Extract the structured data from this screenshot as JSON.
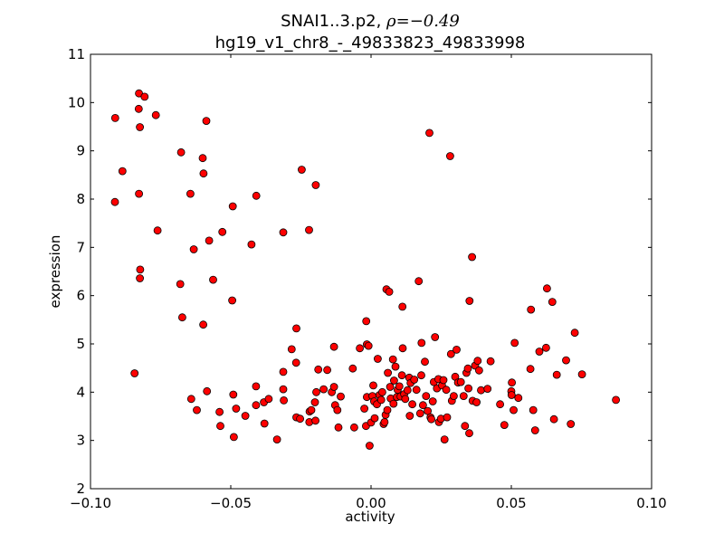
{
  "chart_data": {
    "type": "scatter",
    "title": {
      "line1_prefix": "SNAI1..3.p2,",
      "rho_symbol": "ρ",
      "rho_value": "=−0.49",
      "line2": "hg19_v1_chr8_-_49833823_49833998"
    },
    "xlabel": "activity",
    "ylabel": "expression",
    "xlim": [
      -0.1,
      0.1
    ],
    "ylim": [
      2,
      11
    ],
    "xticks": [
      -0.1,
      -0.05,
      0.0,
      0.05,
      0.1
    ],
    "xtick_labels": [
      "−0.10",
      "−0.05",
      "0.00",
      "0.05",
      "0.10"
    ],
    "yticks": [
      2,
      3,
      4,
      5,
      6,
      7,
      8,
      9,
      10,
      11
    ],
    "ytick_labels": [
      "2",
      "3",
      "4",
      "5",
      "6",
      "7",
      "8",
      "9",
      "10",
      "11"
    ],
    "grid": false,
    "legend": "none",
    "marker": {
      "shape": "circle",
      "fill": "#ff0000",
      "edge": "#000000"
    },
    "points": [
      [
        -0.0912,
        9.68
      ],
      [
        -0.0827,
        10.19
      ],
      [
        -0.0807,
        10.12
      ],
      [
        -0.0828,
        9.87
      ],
      [
        -0.0824,
        9.49
      ],
      [
        -0.0767,
        9.74
      ],
      [
        -0.0886,
        8.58
      ],
      [
        -0.0913,
        7.94
      ],
      [
        -0.0827,
        8.11
      ],
      [
        -0.0761,
        7.35
      ],
      [
        -0.0823,
        6.54
      ],
      [
        -0.0824,
        6.36
      ],
      [
        -0.0843,
        4.39
      ],
      [
        -0.0587,
        9.62
      ],
      [
        -0.0677,
        8.97
      ],
      [
        -0.06,
        8.85
      ],
      [
        -0.0597,
        8.53
      ],
      [
        -0.0644,
        8.11
      ],
      [
        -0.0493,
        7.85
      ],
      [
        -0.0409,
        8.07
      ],
      [
        -0.053,
        7.32
      ],
      [
        -0.0577,
        7.14
      ],
      [
        -0.0632,
        6.96
      ],
      [
        -0.0426,
        7.06
      ],
      [
        -0.0563,
        6.33
      ],
      [
        -0.068,
        6.24
      ],
      [
        -0.0495,
        5.9
      ],
      [
        -0.0673,
        5.55
      ],
      [
        -0.0598,
        5.4
      ],
      [
        -0.0247,
        8.61
      ],
      [
        -0.0197,
        8.29
      ],
      [
        -0.0313,
        7.31
      ],
      [
        -0.0221,
        7.36
      ],
      [
        -0.0266,
        5.32
      ],
      [
        -0.0283,
        4.89
      ],
      [
        -0.0267,
        4.61
      ],
      [
        -0.0313,
        4.42
      ],
      [
        -0.0641,
        3.86
      ],
      [
        -0.0585,
        4.02
      ],
      [
        -0.0621,
        3.63
      ],
      [
        -0.054,
        3.59
      ],
      [
        -0.0537,
        3.3
      ],
      [
        -0.0489,
        3.07
      ],
      [
        -0.0491,
        3.95
      ],
      [
        -0.0481,
        3.66
      ],
      [
        -0.0448,
        3.51
      ],
      [
        -0.041,
        3.73
      ],
      [
        -0.041,
        4.12
      ],
      [
        -0.0382,
        3.79
      ],
      [
        -0.038,
        3.35
      ],
      [
        -0.0365,
        3.86
      ],
      [
        -0.0335,
        3.02
      ],
      [
        -0.0313,
        4.06
      ],
      [
        -0.0311,
        3.83
      ],
      [
        -0.0266,
        3.48
      ],
      [
        -0.0253,
        3.45
      ],
      [
        -0.022,
        3.38
      ],
      [
        -0.0198,
        3.41
      ],
      [
        -0.0219,
        3.6
      ],
      [
        -0.0213,
        3.63
      ],
      [
        -0.02,
        3.79
      ],
      [
        -0.0195,
        4.0
      ],
      [
        -0.0188,
        4.47
      ],
      [
        -0.0169,
        4.06
      ],
      [
        -0.0156,
        4.46
      ],
      [
        -0.014,
        4.0
      ],
      [
        -0.0132,
        4.11
      ],
      [
        -0.0132,
        4.94
      ],
      [
        -0.0128,
        3.73
      ],
      [
        -0.012,
        3.63
      ],
      [
        -0.0116,
        3.27
      ],
      [
        -0.0108,
        3.91
      ],
      [
        -0.0065,
        4.49
      ],
      [
        -0.006,
        3.27
      ],
      [
        -0.004,
        4.91
      ],
      [
        -0.0024,
        3.66
      ],
      [
        -0.0018,
        3.3
      ],
      [
        -0.0017,
        5.47
      ],
      [
        -0.0015,
        4.99
      ],
      [
        -0.0009,
        4.96
      ],
      [
        -0.0015,
        3.9
      ],
      [
        -0.0005,
        2.89
      ],
      [
        0.0,
        3.37
      ],
      [
        0.0005,
        3.92
      ],
      [
        0.0008,
        4.14
      ],
      [
        0.0011,
        3.81
      ],
      [
        0.0013,
        3.46
      ],
      [
        0.0021,
        3.75
      ],
      [
        0.0024,
        4.69
      ],
      [
        0.003,
        3.94
      ],
      [
        0.0036,
        3.84
      ],
      [
        0.004,
        4.0
      ],
      [
        0.0045,
        3.34
      ],
      [
        0.0048,
        3.38
      ],
      [
        0.0052,
        3.53
      ],
      [
        0.0055,
        6.13
      ],
      [
        0.0058,
        3.63
      ],
      [
        0.006,
        4.4
      ],
      [
        0.0065,
        6.08
      ],
      [
        0.0068,
        4.11
      ],
      [
        0.007,
        3.87
      ],
      [
        0.0078,
        4.68
      ],
      [
        0.008,
        3.76
      ],
      [
        0.0082,
        4.24
      ],
      [
        0.0087,
        4.53
      ],
      [
        0.0092,
        3.9
      ],
      [
        0.0095,
        4.05
      ],
      [
        0.0101,
        4.12
      ],
      [
        0.0105,
        3.91
      ],
      [
        0.011,
        4.35
      ],
      [
        0.0113,
        4.91
      ],
      [
        0.0112,
        5.77
      ],
      [
        0.0118,
        3.96
      ],
      [
        0.0122,
        3.86
      ],
      [
        0.013,
        4.04
      ],
      [
        0.0136,
        4.3
      ],
      [
        0.0138,
        3.51
      ],
      [
        0.0141,
        4.19
      ],
      [
        0.0147,
        3.75
      ],
      [
        0.0154,
        4.26
      ],
      [
        0.0162,
        4.05
      ],
      [
        0.017,
        6.3
      ],
      [
        0.0175,
        3.56
      ],
      [
        0.0179,
        4.35
      ],
      [
        0.018,
        5.02
      ],
      [
        0.0185,
        3.73
      ],
      [
        0.0192,
        4.63
      ],
      [
        0.0196,
        3.92
      ],
      [
        0.0202,
        3.61
      ],
      [
        0.0208,
        9.37
      ],
      [
        0.0212,
        3.48
      ],
      [
        0.0215,
        3.44
      ],
      [
        0.022,
        3.81
      ],
      [
        0.0224,
        4.21
      ],
      [
        0.0228,
        5.14
      ],
      [
        0.0235,
        4.08
      ],
      [
        0.024,
        4.27
      ],
      [
        0.0242,
        3.38
      ],
      [
        0.0249,
        3.45
      ],
      [
        0.0253,
        4.14
      ],
      [
        0.0258,
        4.25
      ],
      [
        0.0262,
        3.02
      ],
      [
        0.0268,
        4.05
      ],
      [
        0.0271,
        3.48
      ],
      [
        0.0282,
        8.89
      ],
      [
        0.0285,
        4.79
      ],
      [
        0.0288,
        3.82
      ],
      [
        0.0295,
        3.92
      ],
      [
        0.03,
        4.32
      ],
      [
        0.0305,
        4.88
      ],
      [
        0.031,
        4.2
      ],
      [
        0.032,
        4.21
      ],
      [
        0.033,
        3.92
      ],
      [
        0.0335,
        3.3
      ],
      [
        0.034,
        4.4
      ],
      [
        0.0345,
        4.49
      ],
      [
        0.0347,
        4.08
      ],
      [
        0.035,
        3.15
      ],
      [
        0.0351,
        5.89
      ],
      [
        0.036,
        6.8
      ],
      [
        0.0362,
        3.82
      ],
      [
        0.0371,
        4.55
      ],
      [
        0.0376,
        3.79
      ],
      [
        0.038,
        4.65
      ],
      [
        0.0385,
        4.45
      ],
      [
        0.0392,
        4.04
      ],
      [
        0.0415,
        4.07
      ],
      [
        0.0426,
        4.64
      ],
      [
        0.046,
        3.75
      ],
      [
        0.0475,
        3.32
      ],
      [
        0.05,
        4.02
      ],
      [
        0.0501,
        3.94
      ],
      [
        0.0502,
        4.2
      ],
      [
        0.0508,
        3.63
      ],
      [
        0.0512,
        5.02
      ],
      [
        0.0525,
        3.88
      ],
      [
        0.0568,
        4.48
      ],
      [
        0.057,
        5.71
      ],
      [
        0.0578,
        3.63
      ],
      [
        0.0585,
        3.21
      ],
      [
        0.06,
        4.84
      ],
      [
        0.0624,
        4.92
      ],
      [
        0.0627,
        6.15
      ],
      [
        0.0646,
        5.87
      ],
      [
        0.0652,
        3.44
      ],
      [
        0.0662,
        4.36
      ],
      [
        0.0695,
        4.66
      ],
      [
        0.0712,
        3.34
      ],
      [
        0.0726,
        5.23
      ],
      [
        0.0752,
        4.37
      ],
      [
        0.0873,
        3.84
      ]
    ]
  }
}
